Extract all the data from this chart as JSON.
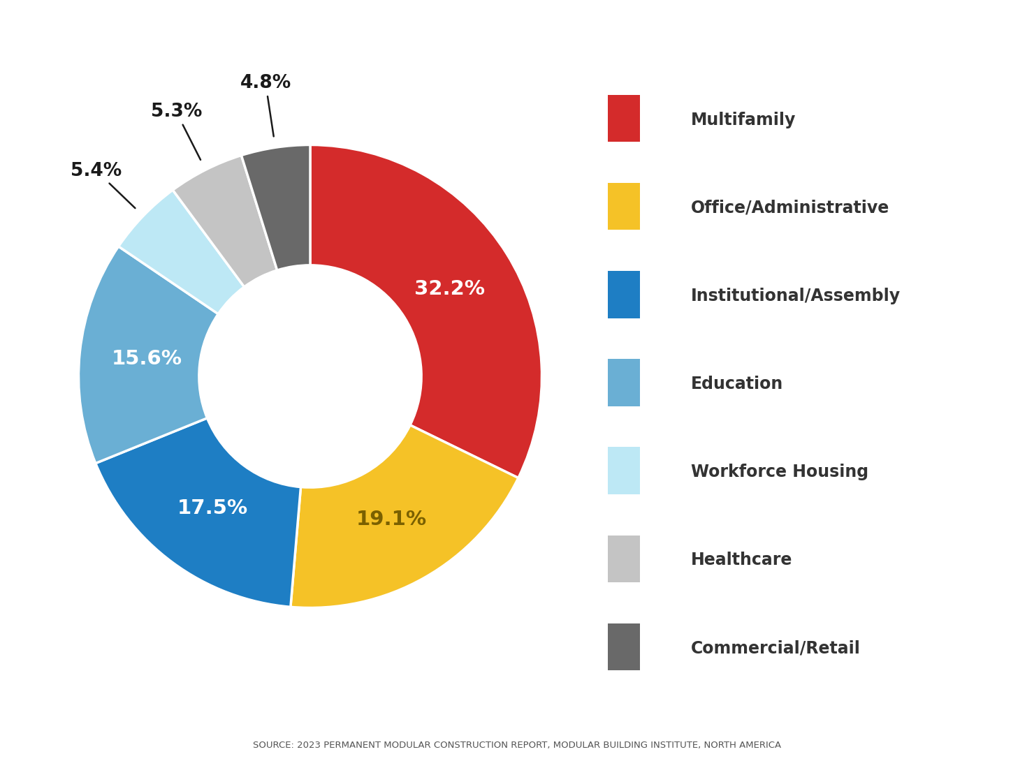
{
  "labels": [
    "Multifamily",
    "Office/Administrative",
    "Institutional/Assembly",
    "Education",
    "Workforce Housing",
    "Healthcare",
    "Commercial/Retail"
  ],
  "values": [
    32.2,
    19.1,
    17.5,
    15.6,
    5.4,
    5.3,
    4.8
  ],
  "colors": [
    "#D42B2B",
    "#F5C227",
    "#1E7EC4",
    "#6AAFD4",
    "#BDE8F5",
    "#C4C4C4",
    "#696969"
  ],
  "inside_label_colors": [
    "#FFFFFF",
    "#7A6000",
    "#FFFFFF",
    "#FFFFFF",
    "#FFFFFF",
    "#FFFFFF",
    "#FFFFFF"
  ],
  "pct_labels_outside": [
    false,
    false,
    false,
    false,
    true,
    true,
    true
  ],
  "source_text": "SOURCE: 2023 PERMANENT MODULAR CONSTRUCTION REPORT, MODULAR BUILDING INSTITUTE, NORTH AMERICA",
  "background_color": "#FFFFFF",
  "legend_labels": [
    "Multifamily",
    "Office/Administrative",
    "Institutional/Assembly",
    "Education",
    "Workforce Housing",
    "Healthcare",
    "Commercial/Retail"
  ],
  "donut_width": 0.52,
  "startangle": 90,
  "fig_width": 14.8,
  "fig_height": 11.0
}
